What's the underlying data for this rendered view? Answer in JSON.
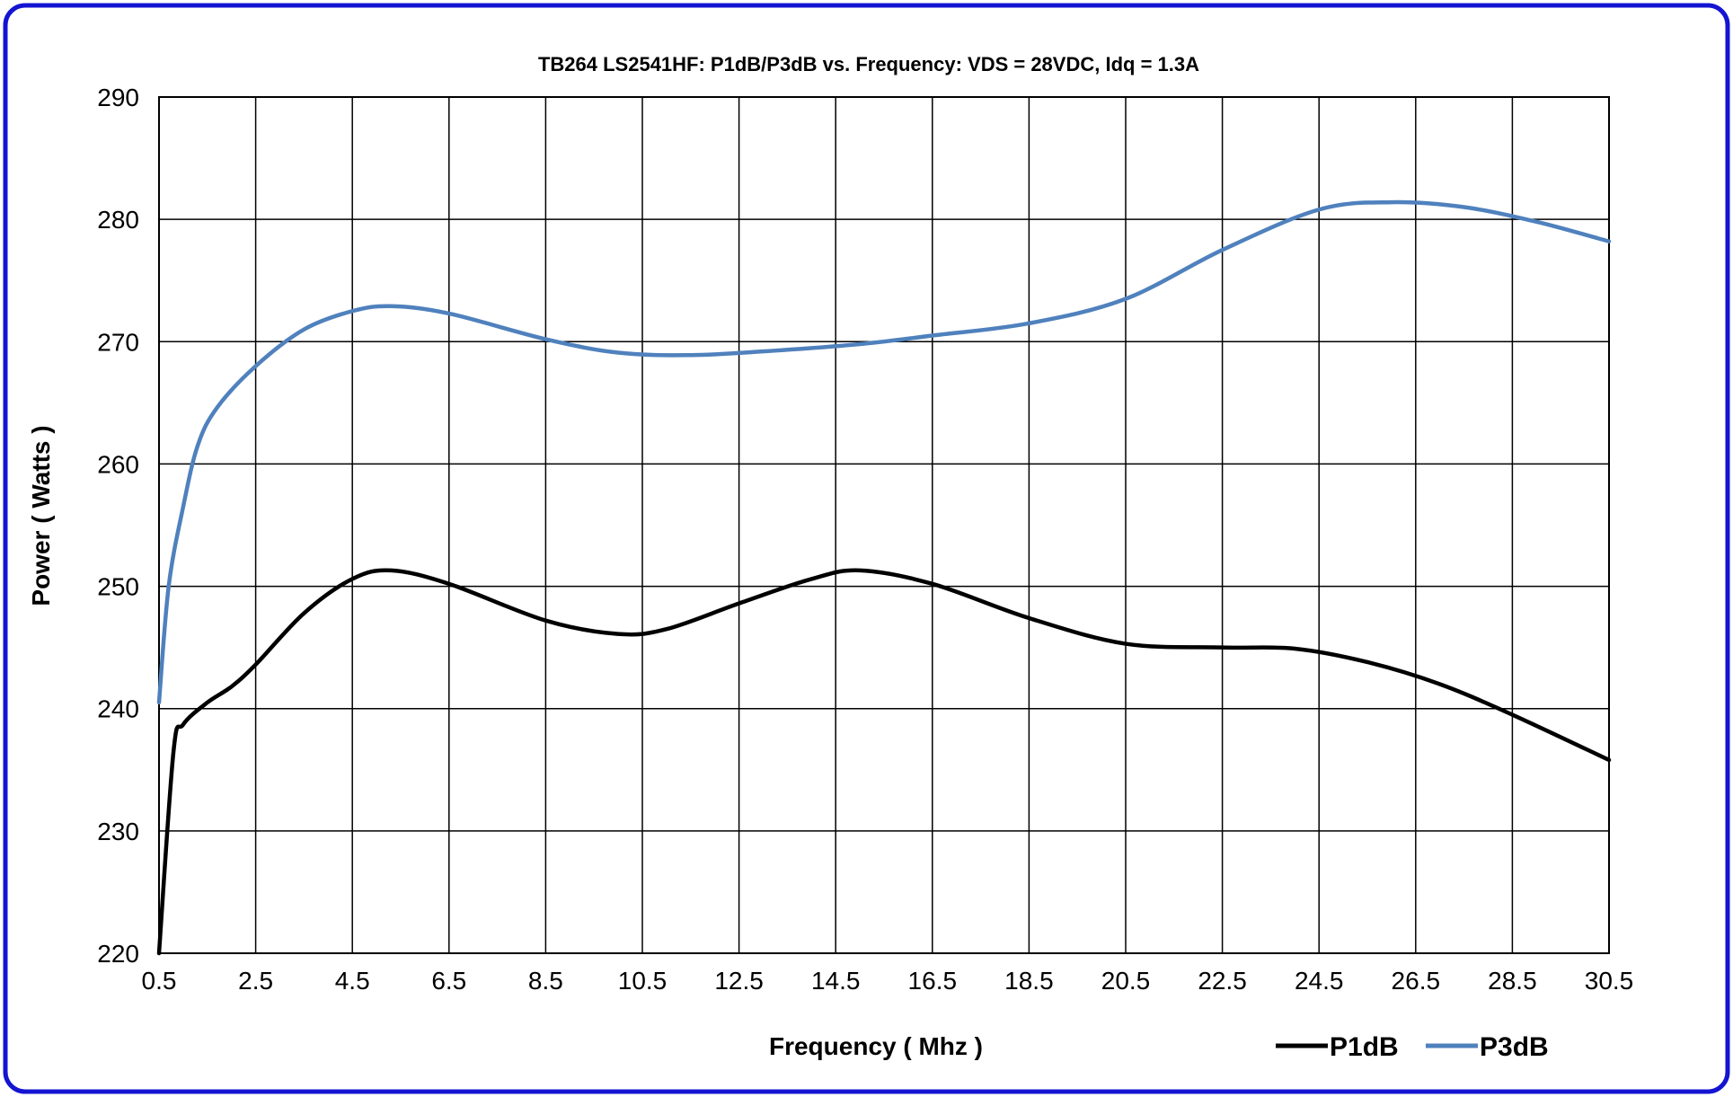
{
  "colors": {
    "frame_border": "#1414d2",
    "grid": "#000000",
    "p1db": "#000000",
    "p3db": "#4f81bd"
  },
  "chart_data": {
    "type": "line",
    "title": "TB264 LS2541HF:  P1dB/P3dB   vs. Frequency:  VDS = 28VDC,   Idq = 1.3A",
    "xlabel": "Frequency ( Mhz )",
    "ylabel": "Power ( Watts )",
    "xlim": [
      0.5,
      30.5
    ],
    "ylim": [
      220,
      290
    ],
    "x_ticks": [
      0.5,
      2.5,
      4.5,
      6.5,
      8.5,
      10.5,
      12.5,
      14.5,
      16.5,
      18.5,
      20.5,
      22.5,
      24.5,
      26.5,
      28.5,
      30.5
    ],
    "x_tick_labels": [
      "0.5",
      "2.5",
      "4.5",
      "6.5",
      "8.5",
      "10.5",
      "12.5",
      "14.5",
      "16.5",
      "18.5",
      "20.5",
      "22.5",
      "24.5",
      "26.5",
      "28.5",
      "30.5"
    ],
    "y_ticks": [
      220,
      230,
      240,
      250,
      260,
      270,
      280,
      290
    ],
    "y_tick_labels": [
      "220",
      "230",
      "240",
      "250",
      "260",
      "270",
      "280",
      "290"
    ],
    "grid": true,
    "legend_position": "bottom-right",
    "smooth": true,
    "series": [
      {
        "name": "P1dB",
        "color": "#000000",
        "x": [
          0.5,
          0.8,
          1.0,
          1.5,
          2.0,
          2.5,
          3.5,
          4.5,
          5.3,
          6.5,
          8.5,
          10.0,
          11.0,
          12.5,
          14.0,
          15.0,
          16.5,
          18.5,
          20.5,
          22.5,
          24.0,
          25.5,
          27.0,
          28.5,
          30.5
        ],
        "values": [
          220.0,
          236.5,
          238.7,
          240.5,
          241.8,
          243.6,
          247.8,
          250.6,
          251.3,
          250.2,
          247.2,
          246.1,
          246.5,
          248.6,
          250.6,
          251.3,
          250.2,
          247.4,
          245.3,
          245.0,
          244.9,
          243.8,
          242.0,
          239.5,
          235.8
        ]
      },
      {
        "name": "P3dB",
        "color": "#4f81bd",
        "x": [
          0.5,
          0.7,
          1.0,
          1.3,
          1.7,
          2.5,
          3.5,
          4.5,
          5.3,
          6.5,
          8.5,
          10.0,
          11.5,
          13.0,
          15.0,
          16.5,
          18.5,
          20.5,
          22.5,
          24.5,
          26.0,
          27.5,
          29.0,
          30.5
        ],
        "values": [
          240.5,
          250.0,
          256.5,
          261.5,
          264.6,
          268.0,
          271.0,
          272.5,
          272.9,
          272.3,
          270.2,
          269.1,
          268.9,
          269.2,
          269.8,
          270.5,
          271.5,
          273.5,
          277.5,
          280.8,
          281.4,
          281.0,
          279.8,
          278.2
        ]
      }
    ]
  }
}
